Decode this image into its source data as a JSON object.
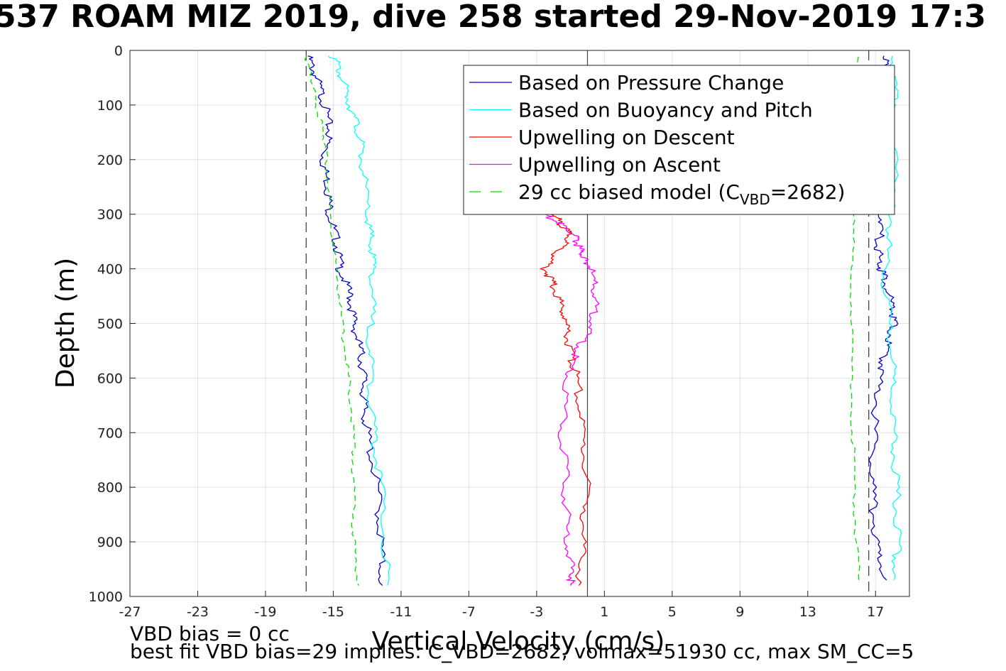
{
  "title": "537 ROAM MIZ 2019, dive 258 started 29-Nov-2019 17:3",
  "notes": {
    "vbd_bias": "VBD bias = 0 cc",
    "best_fit": "best fit VBD bias=29 implies: C_VBD=2682, volmax=51930 cc, max SM_CC=5"
  },
  "chart_data": {
    "type": "line",
    "title": "537 ROAM MIZ 2019, dive 258 started 29-Nov-2019 17:3",
    "xlabel": "Vertical Velocity (cm/s)",
    "ylabel": "Depth (m)",
    "xlim": [
      -27,
      19
    ],
    "ylim": [
      0,
      1000
    ],
    "y_reversed": true,
    "grid": true,
    "xticks": [
      "-27",
      "-23",
      "-19",
      "-15",
      "-11",
      "-7",
      "-3",
      "1",
      "5",
      "9",
      "13",
      "17"
    ],
    "yticks": [
      "0",
      "100",
      "200",
      "300",
      "400",
      "500",
      "600",
      "700",
      "800",
      "900",
      "1000"
    ],
    "legend": {
      "placement": "top-right",
      "entries": [
        {
          "label": "Based on Pressure Change",
          "color": "#0000cc",
          "style": "solid"
        },
        {
          "label": "Based on Buoyancy and Pitch",
          "color": "#00ffff",
          "style": "solid"
        },
        {
          "label": "Upwelling on Descent",
          "color": "#ff0000",
          "style": "solid"
        },
        {
          "label": "Upwelling on Ascent",
          "color": "#ff00ff",
          "style": "solid"
        },
        {
          "label": "29 cc biased model (C",
          "sub": "VBD",
          "suffix": "=2682)",
          "color": "#00dd00",
          "style": "dashed"
        }
      ]
    },
    "reference_lines": {
      "dashed_x": [
        -16.6,
        16.6
      ],
      "solid_x": [
        0.0
      ]
    },
    "series": [
      {
        "name": "Based on Pressure Change",
        "color": "#0000cc",
        "segment": "descent",
        "x": [
          -16.5,
          -16.0,
          -15.5,
          -15.2,
          -15.6,
          -15.3,
          -15.2,
          -14.8,
          -14.6,
          -14.0,
          -13.8,
          -13.4,
          -13.2,
          -13.2,
          -13.0,
          -12.4,
          -12.2,
          -12.1
        ],
        "y": [
          10,
          50,
          100,
          150,
          200,
          250,
          300,
          350,
          400,
          450,
          500,
          550,
          600,
          650,
          700,
          800,
          900,
          980
        ]
      },
      {
        "name": "Based on Pressure Change",
        "color": "#0000cc",
        "segment": "ascent",
        "x": [
          17.6,
          17.0,
          16.8,
          16.9,
          17.2,
          17.6,
          18.1,
          18.0,
          17.5,
          17.2,
          17.2,
          17.4,
          17.6,
          17.6,
          17.5
        ],
        "y": [
          970,
          900,
          800,
          700,
          600,
          550,
          500,
          470,
          420,
          390,
          350,
          300,
          100,
          50,
          10
        ]
      },
      {
        "name": "Based on Buoyancy and Pitch",
        "color": "#00ffff",
        "segment": "descent",
        "x": [
          -15.0,
          -14.5,
          -14.0,
          -13.5,
          -13.3,
          -13.0,
          -12.8,
          -12.6,
          -12.8,
          -12.8,
          -12.6,
          -12.2,
          -11.8
        ],
        "y": [
          10,
          50,
          100,
          150,
          200,
          300,
          350,
          400,
          500,
          600,
          700,
          800,
          980
        ]
      },
      {
        "name": "Based on Buoyancy and Pitch",
        "color": "#00ffff",
        "segment": "ascent",
        "x": [
          18.0,
          18.4,
          18.2,
          18.1,
          18.0,
          17.8,
          17.5,
          18.0,
          18.2,
          18.0
        ],
        "y": [
          970,
          900,
          800,
          700,
          600,
          500,
          400,
          300,
          100,
          10
        ]
      },
      {
        "name": "Upwelling on Descent",
        "color": "#ff0000",
        "x": [
          -2.0,
          -1.5,
          -1.0,
          -1.8,
          -2.5,
          -2.0,
          -1.5,
          -1.2,
          -1.0,
          -0.6,
          -0.3,
          0.0,
          -0.3,
          -0.5
        ],
        "y": [
          300,
          320,
          340,
          370,
          400,
          430,
          470,
          510,
          560,
          600,
          700,
          800,
          900,
          980
        ]
      },
      {
        "name": "Upwelling on Ascent",
        "color": "#ff00ff",
        "x": [
          -2.5,
          -1.5,
          -0.8,
          -0.5,
          -0.2,
          0.2,
          0.5,
          0.3,
          -0.6,
          -1.2,
          -1.5,
          -1.3,
          -1.2,
          -0.9,
          -1.0
        ],
        "y": [
          300,
          320,
          340,
          360,
          380,
          400,
          450,
          500,
          550,
          600,
          700,
          800,
          900,
          960,
          980
        ]
      },
      {
        "name": "29 cc biased model",
        "color": "#00dd00",
        "dashed": true,
        "segment": "descent",
        "x": [
          -16.6,
          -16.3,
          -16.0,
          -15.6,
          -15.4,
          -15.2,
          -14.8,
          -14.5,
          -14.1,
          -13.8,
          -13.8,
          -13.8,
          -13.5
        ],
        "y": [
          10,
          50,
          100,
          150,
          200,
          300,
          400,
          500,
          600,
          700,
          800,
          900,
          980
        ]
      },
      {
        "name": "29 cc biased model",
        "color": "#00dd00",
        "dashed": true,
        "segment": "ascent",
        "x": [
          16.0,
          15.7,
          15.6,
          15.6,
          15.8,
          15.8,
          16.0
        ],
        "y": [
          970,
          800,
          600,
          400,
          300,
          100,
          10
        ]
      }
    ]
  }
}
